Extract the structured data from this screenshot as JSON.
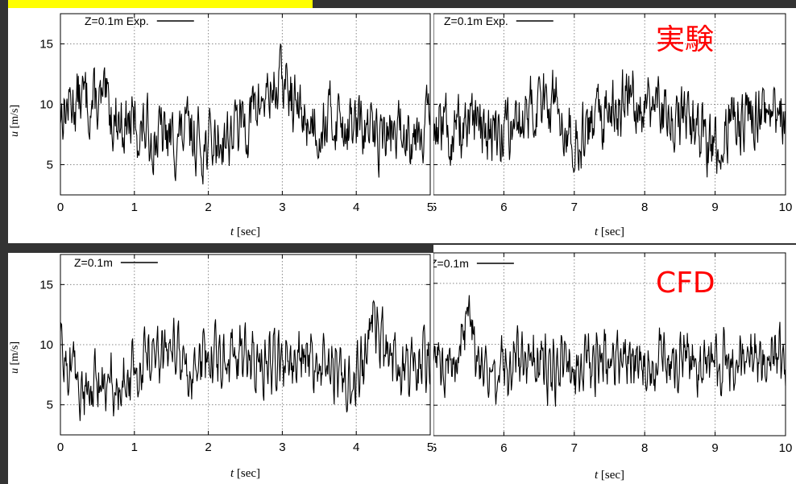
{
  "colors": {
    "background": "#333333",
    "highlight": "#ffff00",
    "annotation": "#ff0000",
    "trace": "#000000"
  },
  "annotations": {
    "top": "実験",
    "bottom": "CFD"
  },
  "panels": [
    {
      "legend": "Z=0.1m Exp.",
      "xlabel_var": "t",
      "xlabel_unit": "[sec]",
      "ylabel_var": "u",
      "ylabel_unit": "[m/s]"
    },
    {
      "legend": "Z=0.1m Exp.",
      "xlabel_var": "t",
      "xlabel_unit": "[sec]"
    },
    {
      "legend": "Z=0.1m",
      "xlabel_var": "t",
      "xlabel_unit": "[sec]",
      "ylabel_var": "u",
      "ylabel_unit": "[m/s]"
    },
    {
      "legend": "Z=0.1m",
      "xlabel_var": "t",
      "xlabel_unit": "[sec]"
    }
  ],
  "chart_data": [
    {
      "type": "line",
      "series": [
        {
          "name": "Z=0.1m Exp.",
          "x": [
            0,
            0.25,
            0.5,
            0.75,
            1,
            1.25,
            1.5,
            1.75,
            2,
            2.25,
            2.5,
            2.75,
            3,
            3.25,
            3.5,
            3.75,
            4,
            4.25,
            4.5,
            4.75,
            5
          ],
          "y": [
            9.5,
            10.5,
            10,
            9,
            8,
            7.5,
            7,
            7.5,
            6.5,
            7.5,
            8.5,
            10.5,
            12,
            9,
            8.5,
            9,
            8,
            7.5,
            7.5,
            8,
            9
          ]
        }
      ],
      "xlim": [
        0,
        5
      ],
      "xticks": [
        0,
        1,
        2,
        3,
        4,
        5
      ],
      "ylim": [
        2.5,
        17.5
      ],
      "yticks": [
        5,
        10,
        15
      ],
      "xlabel": "t [sec]",
      "ylabel": "u [m/s]",
      "grid": true,
      "legend_position": "top-left"
    },
    {
      "type": "line",
      "series": [
        {
          "name": "Z=0.1m Exp.",
          "x": [
            5,
            5.25,
            5.5,
            5.75,
            6,
            6.25,
            6.5,
            6.75,
            7,
            7.25,
            7.5,
            7.75,
            8,
            8.25,
            8.5,
            8.75,
            9,
            9.25,
            9.5,
            9.75,
            10
          ],
          "y": [
            8.5,
            8,
            7.5,
            7.5,
            8,
            9,
            10,
            10.5,
            7,
            7.5,
            9,
            11,
            10,
            9.5,
            9,
            7.5,
            6,
            8.5,
            9.5,
            9,
            9
          ]
        }
      ],
      "xlim": [
        5,
        10
      ],
      "xticks": [
        5,
        6,
        7,
        8,
        9,
        10
      ],
      "ylim": [
        2.5,
        17.5
      ],
      "yticks": [
        5,
        10,
        15
      ],
      "xlabel": "t [sec]",
      "grid": true,
      "legend_position": "top-left"
    },
    {
      "type": "line",
      "series": [
        {
          "name": "Z=0.1m",
          "x": [
            0,
            0.25,
            0.5,
            0.75,
            1,
            1.25,
            1.5,
            1.75,
            2,
            2.25,
            2.5,
            2.75,
            3,
            3.25,
            3.5,
            3.75,
            4,
            4.25,
            4.5,
            4.75,
            5
          ],
          "y": [
            9.5,
            7,
            6,
            6,
            8,
            9,
            9.5,
            8,
            8.5,
            9,
            9,
            8,
            9,
            9,
            8,
            8,
            7,
            12,
            8,
            8,
            9
          ]
        }
      ],
      "xlim": [
        0,
        5
      ],
      "xticks": [
        0,
        1,
        2,
        3,
        4,
        5
      ],
      "ylim": [
        2.5,
        17.5
      ],
      "yticks": [
        5,
        10,
        15
      ],
      "xlabel": "t [sec]",
      "ylabel": "u [m/s]",
      "grid": true,
      "legend_position": "top-left"
    },
    {
      "type": "line",
      "series": [
        {
          "name": "Z=0.1m",
          "x": [
            5,
            5.25,
            5.5,
            5.75,
            6,
            6.25,
            6.5,
            6.75,
            7,
            7.25,
            7.5,
            7.75,
            8,
            8.25,
            8.5,
            8.75,
            9,
            9.25,
            9.5,
            9.75,
            10
          ],
          "y": [
            9,
            8,
            12,
            8,
            7.5,
            9,
            8.5,
            8,
            8,
            8.5,
            8.5,
            9,
            7.5,
            9,
            9,
            8.5,
            8,
            8.5,
            8.5,
            8.5,
            9
          ]
        }
      ],
      "xlim": [
        5,
        10
      ],
      "xticks": [
        5,
        6,
        7,
        8,
        9,
        10
      ],
      "ylim": [
        2.5,
        17.5
      ],
      "yticks": [
        5,
        10,
        15
      ],
      "xlabel": "t [sec]",
      "grid": true,
      "legend_position": "top-left"
    }
  ]
}
